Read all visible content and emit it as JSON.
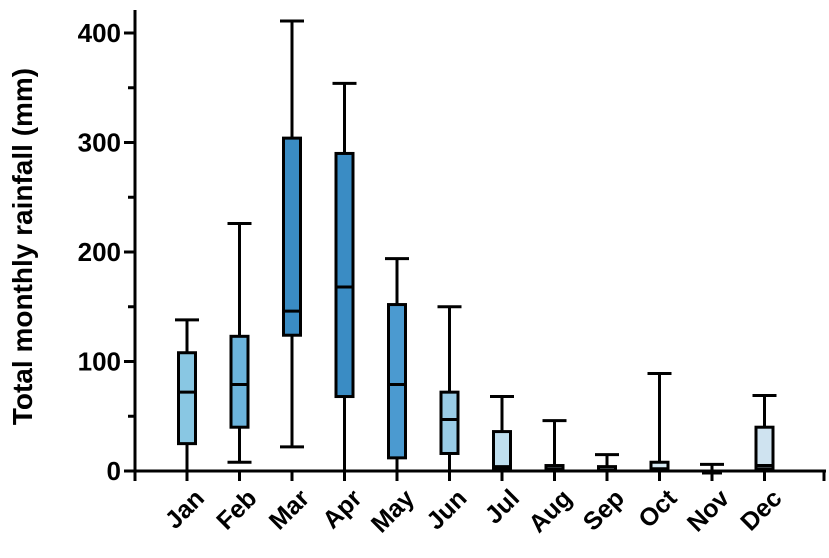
{
  "chart_data": {
    "type": "box",
    "ylabel": "Total monthly rainfall (mm)",
    "xlabel": "",
    "ylim": [
      0,
      420
    ],
    "yticks": [
      0,
      100,
      200,
      300,
      400
    ],
    "grid": false,
    "categories": [
      "Jan",
      "Feb",
      "Mar",
      "Apr",
      "May",
      "Jun",
      "Jul",
      "Aug",
      "Sep",
      "Oct",
      "Nov",
      "Dec"
    ],
    "boxes": [
      {
        "min": 0,
        "q1": 25,
        "median": 72,
        "q3": 108,
        "max": 138
      },
      {
        "min": 8,
        "q1": 40,
        "median": 79,
        "q3": 123,
        "max": 226
      },
      {
        "min": 22,
        "q1": 124,
        "median": 146,
        "q3": 304,
        "max": 411
      },
      {
        "min": 0,
        "q1": 68,
        "median": 168,
        "q3": 290,
        "max": 354
      },
      {
        "min": 0,
        "q1": 12,
        "median": 79,
        "q3": 152,
        "max": 194
      },
      {
        "min": 0,
        "q1": 16,
        "median": 47,
        "q3": 72,
        "max": 150
      },
      {
        "min": 0,
        "q1": 2,
        "median": 4,
        "q3": 36,
        "max": 68
      },
      {
        "min": 0,
        "q1": 0,
        "median": 2,
        "q3": 5,
        "max": 46
      },
      {
        "min": 0,
        "q1": 0,
        "median": 1,
        "q3": 4,
        "max": 15
      },
      {
        "min": 0,
        "q1": 0,
        "median": 2,
        "q3": 8,
        "max": 89
      },
      {
        "min": 0,
        "q1": 0,
        "median": 0,
        "q3": 0,
        "max": 6
      },
      {
        "min": 0,
        "q1": 2,
        "median": 5,
        "q3": 40,
        "max": 69
      }
    ],
    "box_colors": [
      "#89c7e3",
      "#6cb4dc",
      "#3a8cc4",
      "#3a8cc4",
      "#4b9ad0",
      "#99cce6",
      "#bfdfef",
      "#cfe6f3",
      "#d9ebf5",
      "#d9ebf5",
      "#e6f1f8",
      "#cfe3f0"
    ],
    "line_color": "#000000"
  }
}
